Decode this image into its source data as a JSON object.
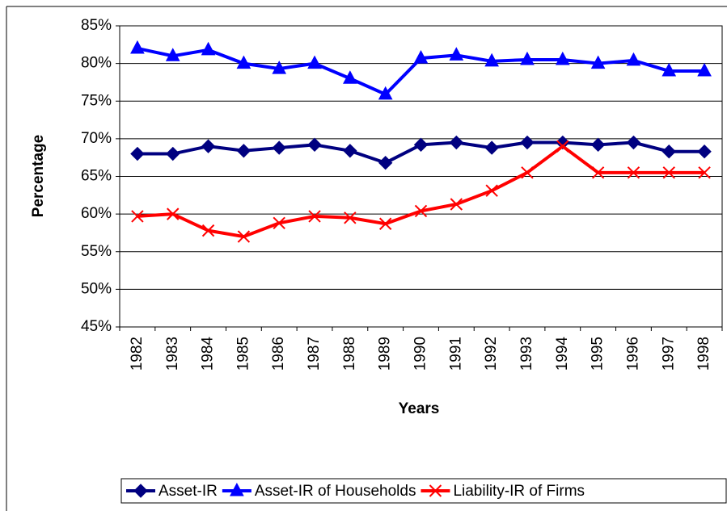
{
  "chart_data": {
    "type": "line",
    "ylabel": "Percentage",
    "xlabel": "Years",
    "categories": [
      "1982",
      "1983",
      "1984",
      "1985",
      "1986",
      "1987",
      "1988",
      "1989",
      "1990",
      "1991",
      "1992",
      "1993",
      "1994",
      "1995",
      "1996",
      "1997",
      "1998"
    ],
    "series": [
      {
        "name": "Asset-IR",
        "color": "#000080",
        "marker": "diamond",
        "values": [
          68,
          68,
          69,
          68.4,
          68.8,
          69.2,
          68.4,
          66.8,
          69.2,
          69.5,
          68.8,
          69.5,
          69.5,
          69.2,
          69.5,
          68.3,
          68.3
        ]
      },
      {
        "name": "Asset-IR of Households",
        "color": "#0000FF",
        "marker": "triangle",
        "values": [
          82,
          81,
          81.8,
          80,
          79.3,
          80,
          78,
          75.9,
          80.7,
          81.1,
          80.3,
          80.5,
          80.5,
          80,
          80.4,
          79,
          79
        ]
      },
      {
        "name": "Liability-IR of Firms",
        "color": "#FF0000",
        "marker": "x",
        "values": [
          59.7,
          60,
          57.8,
          57,
          58.8,
          59.7,
          59.5,
          58.7,
          60.4,
          61.3,
          63.1,
          65.5,
          69,
          65.5,
          65.5,
          65.5,
          65.5
        ]
      }
    ],
    "ylim": [
      45,
      85
    ],
    "yticks": [
      {
        "value": 45,
        "label": "45%"
      },
      {
        "value": 50,
        "label": "50%"
      },
      {
        "value": 55,
        "label": "55%"
      },
      {
        "value": 60,
        "label": "60%"
      },
      {
        "value": 65,
        "label": "65%"
      },
      {
        "value": 70,
        "label": "70%"
      },
      {
        "value": 75,
        "label": "75%"
      },
      {
        "value": 80,
        "label": "80%"
      },
      {
        "value": 85,
        "label": "85%"
      }
    ],
    "grid": true,
    "legend": "bottom"
  }
}
